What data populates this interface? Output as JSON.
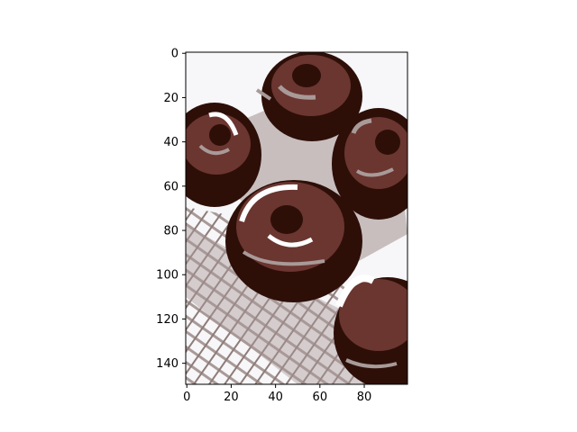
{
  "chart_data": {
    "type": "heatmap",
    "title": "",
    "xlabel": "",
    "ylabel": "",
    "xlim": [
      -0.5,
      99.5
    ],
    "ylim": [
      149.5,
      -0.5
    ],
    "x_ticks": [
      0,
      20,
      40,
      60,
      80
    ],
    "y_ticks": [
      0,
      20,
      40,
      60,
      80,
      100,
      120,
      140
    ],
    "grid": false,
    "palette": {
      "background": "#f7f6f8",
      "light": "#a89a98",
      "mid": "#6b3530",
      "dark": "#2d0f08",
      "highlight": "#ffffff"
    },
    "content": "posterized image of chocolate-glazed donuts on a cooling rack"
  }
}
